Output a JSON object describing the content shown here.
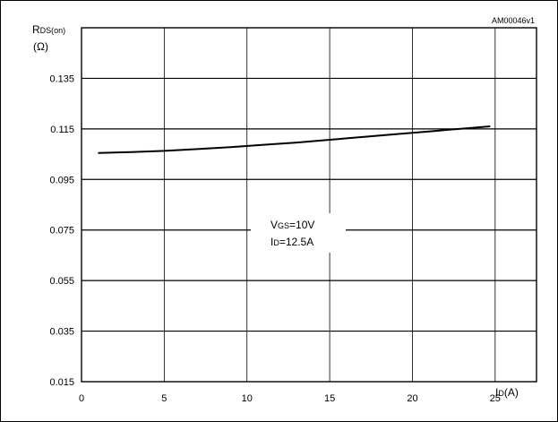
{
  "chart_data": {
    "type": "line",
    "id": "AM00046v1",
    "ylabel": "R",
    "ylabel_sub": "DS(on)",
    "ylabel_unit": "(Ω)",
    "xlabel": "I",
    "xlabel_sub": "D",
    "xlabel_unit": "(A)",
    "xlim": [
      0,
      27.5
    ],
    "ylim": [
      0.015,
      0.155
    ],
    "x_ticks": [
      0,
      5,
      10,
      15,
      20,
      25
    ],
    "x_tick_labels": [
      "0",
      "5",
      "10",
      "15",
      "20",
      "25"
    ],
    "y_ticks": [
      0.015,
      0.035,
      0.055,
      0.075,
      0.095,
      0.115,
      0.135
    ],
    "y_tick_labels": [
      "0.015",
      "0.035",
      "0.055",
      "0.075",
      "0.095",
      "0.115",
      "0.135"
    ],
    "grid": true,
    "series": [
      {
        "x": [
          1,
          3,
          5,
          7,
          9,
          11,
          13,
          15,
          17,
          19,
          21,
          23,
          24.7
        ],
        "y": [
          0.1055,
          0.1058,
          0.1063,
          0.107,
          0.1078,
          0.1087,
          0.1096,
          0.1107,
          0.1118,
          0.1129,
          0.114,
          0.1151,
          0.116
        ]
      }
    ],
    "annotation": {
      "line1_main": "V",
      "line1_sub": "GS",
      "line1_rest": "=10V",
      "line2_main": "I",
      "line2_sub": "D",
      "line2_rest": "=12.5A"
    }
  }
}
